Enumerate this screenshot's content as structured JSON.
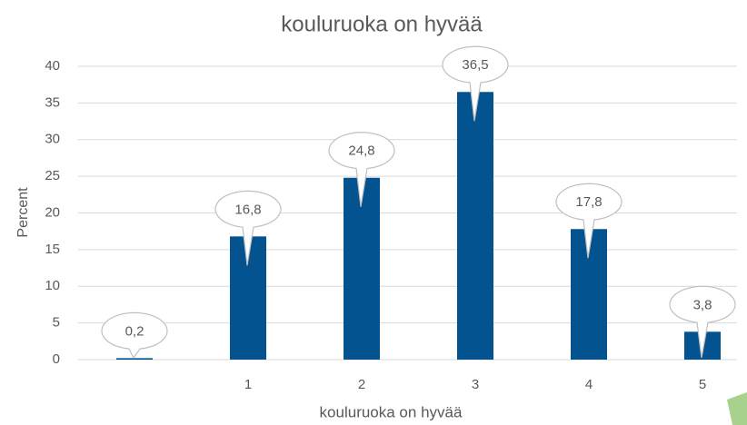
{
  "chart_data": {
    "type": "bar",
    "title": "kouluruoka on hyvää",
    "x_label": "kouluruoka on hyvää",
    "y_label": "Percent",
    "categories": [
      null,
      "1",
      "2",
      "3",
      "4",
      "5"
    ],
    "values": [
      0.2,
      16.8,
      24.8,
      36.5,
      17.8,
      3.8
    ],
    "value_labels": [
      "0,2",
      "16,8",
      "24,8",
      "36,5",
      "17,8",
      "3,8"
    ],
    "color": "#02538f",
    "ylim": [
      0,
      40
    ],
    "yticks": [
      0,
      5,
      10,
      15,
      20,
      25,
      30,
      35,
      40
    ],
    "grid": true
  }
}
